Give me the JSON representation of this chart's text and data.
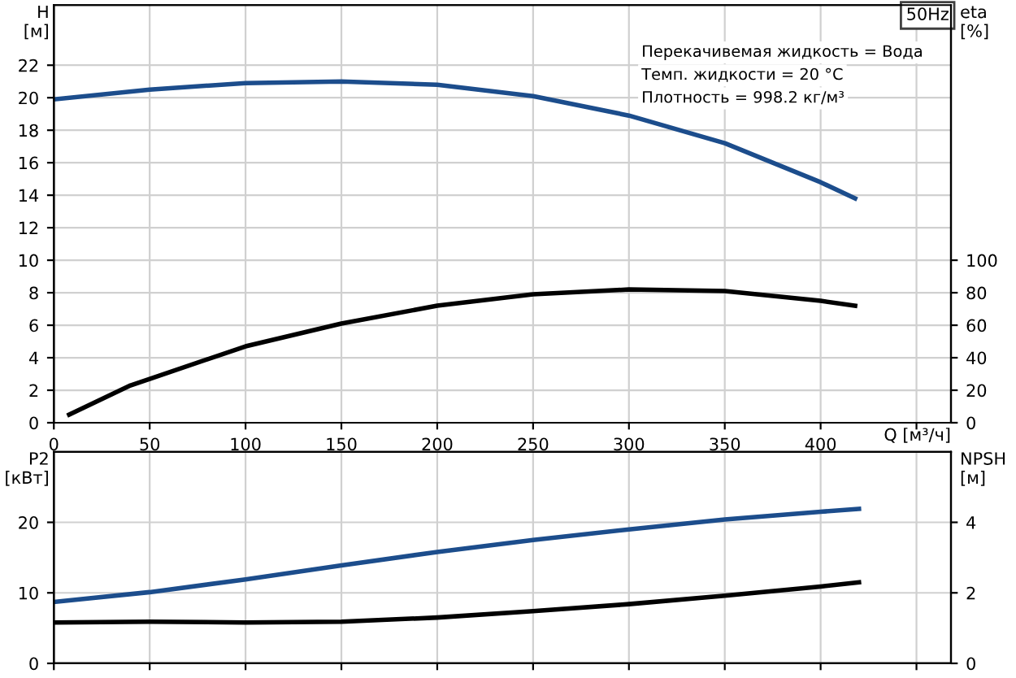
{
  "chart_data": [
    {
      "type": "line",
      "title": "50Hz",
      "xlabel": "Q [м³/ч]",
      "ylabel": "H\n[м]",
      "y2label": "eta\n[%]",
      "annotations": [
        "Перекачивемая жидкость = Вода",
        "Темп. жидкости = 20 °C",
        "Плотность = 998.2 кг/м³"
      ],
      "xlim": [
        0,
        468
      ],
      "xticks": [
        0,
        50,
        100,
        150,
        200,
        250,
        300,
        350,
        400,
        {
          "value": 450,
          "label": null
        }
      ],
      "ylim": [
        0,
        25.7
      ],
      "yticks": [
        0,
        2,
        4,
        6,
        8,
        10,
        12,
        14,
        16,
        18,
        20,
        22
      ],
      "y2lim": [
        0,
        257
      ],
      "y2ticks": [
        0,
        20,
        40,
        60,
        80,
        100
      ],
      "grid": true,
      "legend": false,
      "series": [
        {
          "color": "#1c4d8c",
          "x": [
            0,
            50,
            100,
            150,
            200,
            250,
            300,
            350,
            400,
            418
          ],
          "values": [
            19.9,
            20.5,
            20.9,
            21.0,
            20.8,
            20.1,
            18.9,
            17.2,
            14.8,
            13.8
          ]
        },
        {
          "color": "#000000",
          "axis": "y2",
          "x": [
            8,
            40,
            50,
            100,
            150,
            200,
            250,
            300,
            350,
            400,
            418
          ],
          "values": [
            5,
            23,
            27,
            47,
            61,
            72,
            79,
            82,
            81,
            75,
            72
          ]
        }
      ]
    },
    {
      "type": "line",
      "ylabel": "P2\n[кВт]",
      "y2label": "NPSH\n[м]",
      "xlim": [
        0,
        468
      ],
      "xticks": [
        0,
        50,
        100,
        150,
        200,
        250,
        300,
        350,
        400,
        450
      ],
      "ylim": [
        0,
        30
      ],
      "yticks": [
        0,
        10,
        20
      ],
      "y2lim": [
        0,
        6
      ],
      "y2ticks": [
        0,
        2,
        4
      ],
      "grid": true,
      "legend": false,
      "tick_labels": "y",
      "series": [
        {
          "color": "#1c4d8c",
          "x": [
            0,
            50,
            100,
            150,
            200,
            250,
            300,
            350,
            400,
            420
          ],
          "values": [
            8.7,
            10.1,
            11.9,
            13.9,
            15.8,
            17.5,
            19.0,
            20.4,
            21.5,
            21.9
          ]
        },
        {
          "color": "#000000",
          "axis": "y2",
          "x": [
            0,
            50,
            100,
            150,
            200,
            250,
            300,
            350,
            400,
            420
          ],
          "values": [
            1.16,
            1.18,
            1.16,
            1.18,
            1.3,
            1.48,
            1.68,
            1.92,
            2.18,
            2.3
          ]
        }
      ]
    }
  ]
}
